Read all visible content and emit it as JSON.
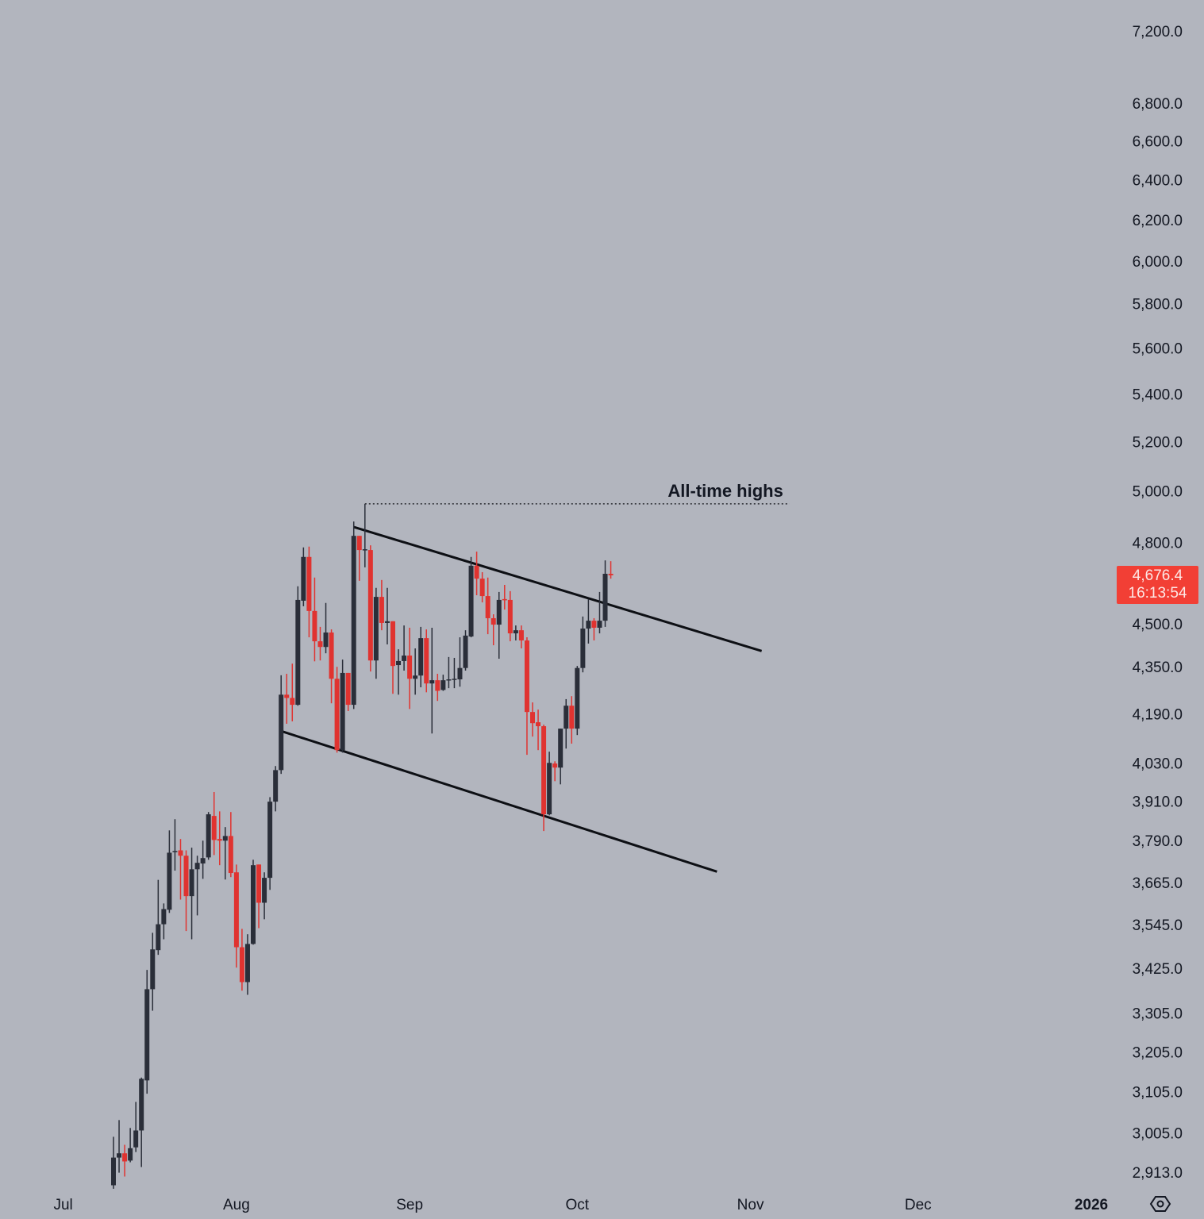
{
  "chart_data": {
    "type": "candlestick",
    "title": "",
    "xlabel": "",
    "ylabel": "",
    "y_scale": "log",
    "ylim": [
      2860,
      7250
    ],
    "xlim": [
      "2025-06-28",
      "2026-01-30"
    ],
    "grid": false,
    "y_ticks": [
      7200,
      6800,
      6600,
      6400,
      6200,
      6000,
      5800,
      5600,
      5400,
      5200,
      5000,
      4800,
      4500,
      4350,
      4190,
      4030,
      3910,
      3790,
      3665,
      3545,
      3425,
      3305,
      3205,
      3105,
      3005,
      2913
    ],
    "y_tick_labels": [
      "7,200.0",
      "6,800.0",
      "6,600.0",
      "6,400.0",
      "6,200.0",
      "6,000.0",
      "5,800.0",
      "5,600.0",
      "5,400.0",
      "5,200.0",
      "5,000.0",
      "4,800.0",
      "4,500.0",
      "4,350.0",
      "4,190.0",
      "4,030.0",
      "3,910.0",
      "3,790.0",
      "3,665.0",
      "3,545.0",
      "3,425.0",
      "3,305.0",
      "3,205.0",
      "3,105.0",
      "3,005.0",
      "2,913.0"
    ],
    "x_ticks": [
      {
        "date": "2025-07-01",
        "label": "Jul",
        "bold": false
      },
      {
        "date": "2025-08-01",
        "label": "Aug",
        "bold": false
      },
      {
        "date": "2025-09-01",
        "label": "Sep",
        "bold": false
      },
      {
        "date": "2025-10-01",
        "label": "Oct",
        "bold": false
      },
      {
        "date": "2025-11-01",
        "label": "Nov",
        "bold": false
      },
      {
        "date": "2025-12-01",
        "label": "Dec",
        "bold": false
      },
      {
        "date": "2026-01-01",
        "label": "2026",
        "bold": true
      }
    ],
    "colors": {
      "up": "#2a2e39",
      "down": "#e03330",
      "background": "#b2b5be",
      "line": "#0d0f14",
      "badge": "#f23f35"
    },
    "candle_columns": [
      "date",
      "open",
      "high",
      "low",
      "close"
    ],
    "candles": [
      [
        "2025-07-10",
        2883,
        2996,
        2875,
        2947
      ],
      [
        "2025-07-11",
        2947,
        3036,
        2912,
        2957
      ],
      [
        "2025-07-12",
        2957,
        2977,
        2903,
        2938
      ],
      [
        "2025-07-13",
        2940,
        3017,
        2936,
        2969
      ],
      [
        "2025-07-14",
        2971,
        3080,
        2960,
        3011
      ],
      [
        "2025-07-15",
        3011,
        3140,
        2925,
        3137
      ],
      [
        "2025-07-16",
        3133,
        3420,
        3100,
        3368
      ],
      [
        "2025-07-17",
        3368,
        3522,
        3311,
        3476
      ],
      [
        "2025-07-18",
        3474,
        3673,
        3461,
        3546
      ],
      [
        "2025-07-19",
        3546,
        3605,
        3504,
        3589
      ],
      [
        "2025-07-20",
        3587,
        3820,
        3578,
        3753
      ],
      [
        "2025-07-21",
        3755,
        3854,
        3700,
        3758
      ],
      [
        "2025-07-22",
        3760,
        3794,
        3616,
        3744
      ],
      [
        "2025-07-23",
        3744,
        3760,
        3527,
        3626
      ],
      [
        "2025-07-24",
        3626,
        3768,
        3504,
        3704
      ],
      [
        "2025-07-25",
        3704,
        3744,
        3571,
        3723
      ],
      [
        "2025-07-26",
        3721,
        3789,
        3676,
        3737
      ],
      [
        "2025-07-27",
        3739,
        3876,
        3732,
        3869
      ],
      [
        "2025-07-28",
        3864,
        3938,
        3746,
        3791
      ],
      [
        "2025-07-29",
        3794,
        3878,
        3716,
        3789
      ],
      [
        "2025-07-30",
        3789,
        3830,
        3674,
        3803
      ],
      [
        "2025-07-31",
        3803,
        3876,
        3681,
        3693
      ],
      [
        "2025-08-01",
        3695,
        3718,
        3426,
        3482
      ],
      [
        "2025-08-02",
        3482,
        3533,
        3364,
        3387
      ],
      [
        "2025-08-03",
        3387,
        3518,
        3353,
        3491
      ],
      [
        "2025-08-04",
        3491,
        3732,
        3489,
        3716
      ],
      [
        "2025-08-05",
        3718,
        3718,
        3535,
        3607
      ],
      [
        "2025-08-06",
        3607,
        3695,
        3560,
        3679
      ],
      [
        "2025-08-07",
        3679,
        3922,
        3644,
        3908
      ],
      [
        "2025-08-08",
        3908,
        4020,
        3878,
        4007
      ],
      [
        "2025-08-09",
        4007,
        4320,
        3995,
        4254
      ],
      [
        "2025-08-10",
        4254,
        4325,
        4157,
        4243
      ],
      [
        "2025-08-11",
        4243,
        4360,
        4165,
        4220
      ],
      [
        "2025-08-12",
        4220,
        4636,
        4217,
        4586
      ],
      [
        "2025-08-13",
        4583,
        4781,
        4563,
        4745
      ],
      [
        "2025-08-14",
        4745,
        4784,
        4452,
        4546
      ],
      [
        "2025-08-15",
        4546,
        4668,
        4368,
        4438
      ],
      [
        "2025-08-16",
        4438,
        4489,
        4371,
        4418
      ],
      [
        "2025-08-17",
        4418,
        4575,
        4396,
        4469
      ],
      [
        "2025-08-18",
        4469,
        4480,
        4225,
        4308
      ],
      [
        "2025-08-19",
        4308,
        4349,
        4063,
        4071
      ],
      [
        "2025-08-20",
        4071,
        4374,
        4063,
        4328
      ],
      [
        "2025-08-21",
        4328,
        4328,
        4199,
        4220
      ],
      [
        "2025-08-22",
        4220,
        4880,
        4206,
        4825
      ],
      [
        "2025-08-23",
        4825,
        4825,
        4656,
        4771
      ],
      [
        "2025-08-24",
        4771,
        4949,
        4706,
        4774
      ],
      [
        "2025-08-25",
        4771,
        4789,
        4333,
        4371
      ],
      [
        "2025-08-26",
        4371,
        4630,
        4308,
        4597
      ],
      [
        "2025-08-27",
        4597,
        4659,
        4477,
        4503
      ],
      [
        "2025-08-28",
        4503,
        4630,
        4427,
        4509
      ],
      [
        "2025-08-29",
        4509,
        4509,
        4257,
        4352
      ],
      [
        "2025-08-30",
        4355,
        4410,
        4254,
        4369
      ],
      [
        "2025-08-31",
        4369,
        4494,
        4336,
        4388
      ],
      [
        "2025-09-01",
        4388,
        4486,
        4206,
        4308
      ],
      [
        "2025-09-02",
        4308,
        4413,
        4254,
        4319
      ],
      [
        "2025-09-03",
        4319,
        4489,
        4279,
        4449
      ],
      [
        "2025-09-04",
        4449,
        4480,
        4262,
        4292
      ],
      [
        "2025-09-05",
        4292,
        4486,
        4125,
        4303
      ],
      [
        "2025-09-06",
        4303,
        4325,
        4233,
        4267
      ],
      [
        "2025-09-07",
        4270,
        4322,
        4267,
        4303
      ],
      [
        "2025-09-08",
        4303,
        4383,
        4276,
        4306
      ],
      [
        "2025-09-09",
        4306,
        4380,
        4276,
        4308
      ],
      [
        "2025-09-10",
        4306,
        4452,
        4281,
        4345
      ],
      [
        "2025-09-11",
        4345,
        4477,
        4336,
        4458
      ],
      [
        "2025-09-12",
        4455,
        4745,
        4452,
        4712
      ],
      [
        "2025-09-13",
        4712,
        4765,
        4603,
        4664
      ],
      [
        "2025-09-14",
        4664,
        4688,
        4577,
        4600
      ],
      [
        "2025-09-15",
        4600,
        4668,
        4463,
        4520
      ],
      [
        "2025-09-16",
        4520,
        4534,
        4424,
        4497
      ],
      [
        "2025-09-17",
        4497,
        4615,
        4377,
        4586
      ],
      [
        "2025-09-18",
        4589,
        4641,
        4551,
        4586
      ],
      [
        "2025-09-19",
        4586,
        4618,
        4438,
        4466
      ],
      [
        "2025-09-20",
        4466,
        4494,
        4441,
        4477
      ],
      [
        "2025-09-21",
        4477,
        4494,
        4413,
        4441
      ],
      [
        "2025-09-22",
        4441,
        4452,
        4056,
        4196
      ],
      [
        "2025-09-23",
        4196,
        4228,
        4115,
        4159
      ],
      [
        "2025-09-24",
        4162,
        4204,
        4071,
        4149
      ],
      [
        "2025-09-25",
        4149,
        4154,
        3818,
        3869
      ],
      [
        "2025-09-26",
        3869,
        4066,
        3866,
        4030
      ],
      [
        "2025-09-27",
        4028,
        4035,
        3972,
        4015
      ],
      [
        "2025-09-28",
        4015,
        4141,
        3962,
        4141
      ],
      [
        "2025-09-29",
        4141,
        4239,
        4076,
        4217
      ],
      [
        "2025-09-30",
        4217,
        4249,
        4092,
        4141
      ],
      [
        "2025-10-01",
        4141,
        4352,
        4120,
        4345
      ],
      [
        "2025-10-02",
        4345,
        4526,
        4330,
        4483
      ],
      [
        "2025-10-03",
        4483,
        4589,
        4430,
        4511
      ],
      [
        "2025-10-04",
        4511,
        4520,
        4441,
        4486
      ],
      [
        "2025-10-05",
        4486,
        4615,
        4466,
        4511
      ],
      [
        "2025-10-06",
        4511,
        4732,
        4489,
        4682
      ],
      [
        "2025-10-07",
        4682,
        4729,
        4664,
        4676.4
      ]
    ],
    "trendlines": [
      {
        "from": [
          "2025-08-22",
          4859
        ],
        "to": [
          "2025-11-03",
          4404
        ],
        "style": "solid"
      },
      {
        "from": [
          "2025-08-09",
          4133
        ],
        "to": [
          "2025-10-26",
          3697
        ],
        "style": "solid"
      }
    ],
    "horizontal_lines": [
      {
        "from": "2025-08-24",
        "to": "2025-11-08",
        "price": 4949,
        "style": "dotted",
        "label": "All-time highs"
      }
    ],
    "last_price": {
      "value": "4,676.4",
      "countdown": "16:13:54"
    }
  },
  "axis": {
    "settings_icon": "settings-hexagon-icon"
  }
}
